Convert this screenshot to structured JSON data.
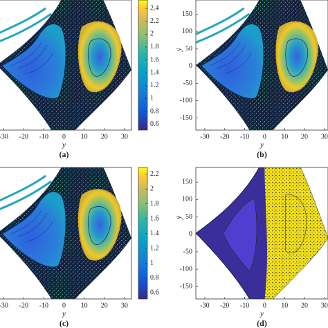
{
  "chart_data": [
    {
      "type": "contour",
      "xlabel": "y",
      "caption": "(a)",
      "xlim": [
        -33.5,
        33.5
      ],
      "xticks": [
        -30,
        -20,
        -10,
        0,
        10,
        20,
        30
      ],
      "colorbar": true,
      "clim": [
        0.51,
        2.53
      ],
      "cticks": [
        0.6,
        0.8,
        1,
        1.2,
        1.4,
        1.6,
        1.8,
        2,
        2.2,
        2.4
      ]
    },
    {
      "type": "contour",
      "xlabel": "y",
      "ylabel": "ẏ",
      "caption": "(b)",
      "xlim": [
        -34.5,
        31.8
      ],
      "xticks": [
        -30,
        -20,
        -10,
        0,
        10,
        20,
        30
      ],
      "ylim": [
        -185,
        192
      ],
      "yticks": [
        -150,
        -100,
        -50,
        0,
        50,
        100,
        150
      ],
      "colorbar": false
    },
    {
      "type": "contour",
      "xlabel": "y",
      "caption": "(c)",
      "xlim": [
        -33.5,
        33.5
      ],
      "xticks": [
        -30,
        -20,
        -10,
        0,
        10,
        20,
        30
      ],
      "colorbar": true,
      "clim": [
        0.52,
        2.29
      ],
      "cticks": [
        0.6,
        0.8,
        1,
        1.2,
        1.4,
        1.6,
        1.8,
        2,
        2.2
      ]
    },
    {
      "type": "contour",
      "xlabel": "y",
      "ylabel": "ẏ",
      "caption": "(d)",
      "xlim": [
        -34.5,
        31.8
      ],
      "xticks": [
        -30,
        -20,
        -10,
        0,
        10,
        20,
        30
      ],
      "ylim": [
        -185,
        192
      ],
      "yticks": [
        -150,
        -100,
        -50,
        0,
        50,
        100,
        150
      ],
      "colorbar": false
    }
  ]
}
